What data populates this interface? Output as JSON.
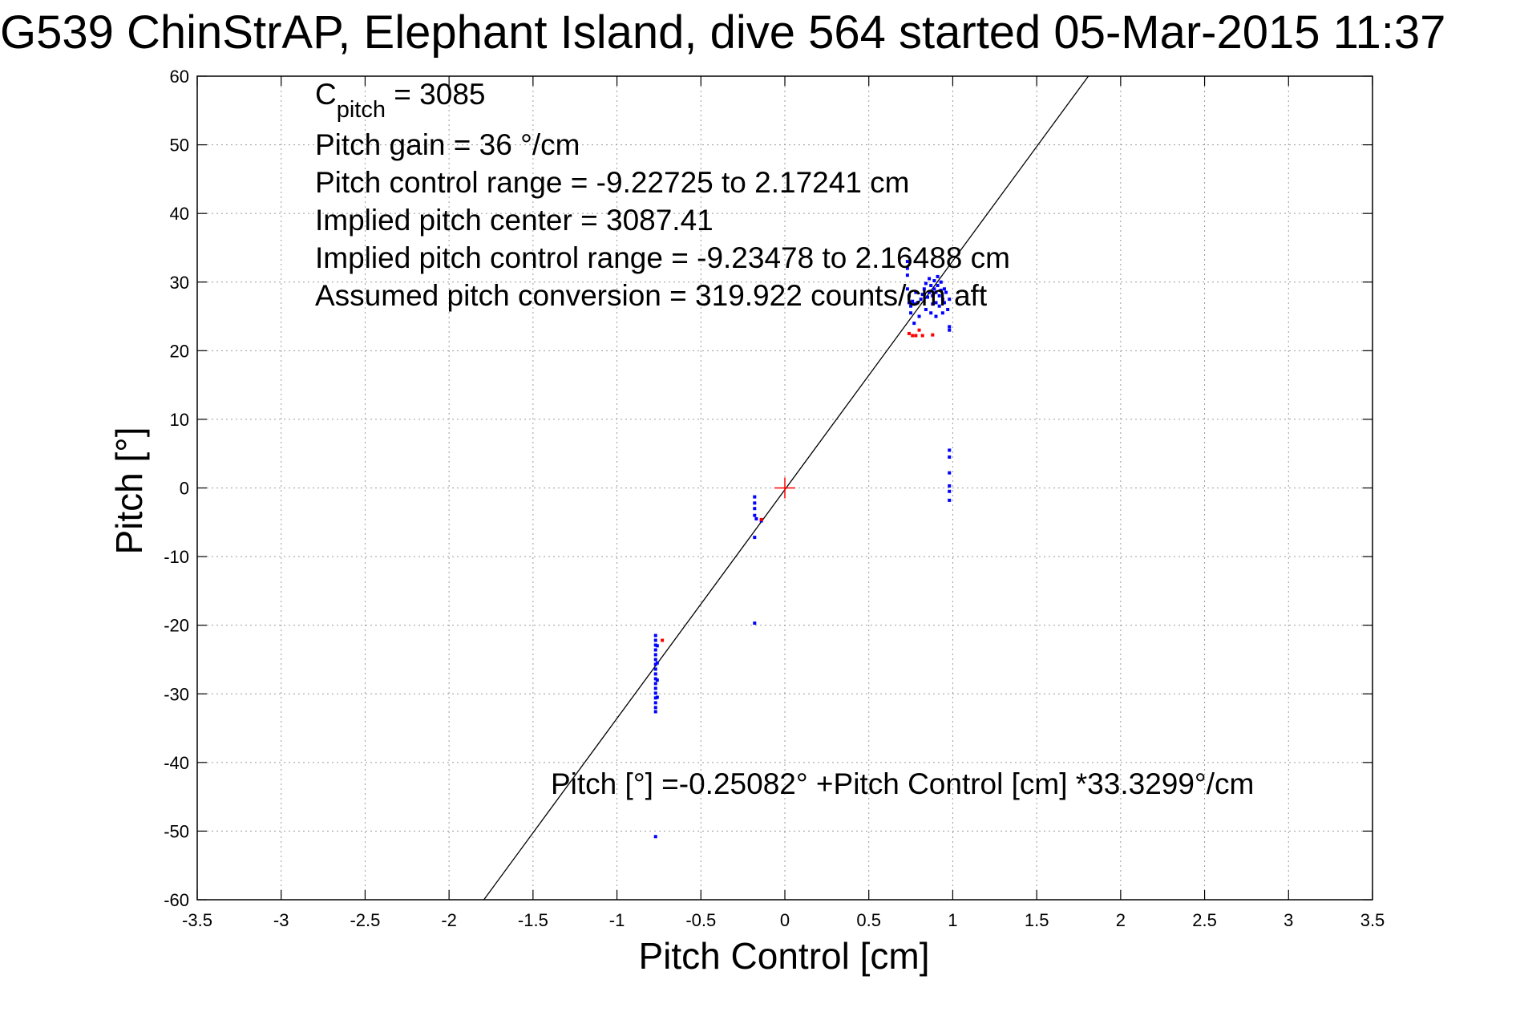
{
  "chart_data": {
    "type": "scatter",
    "title": "G539 ChinStrAP, Elephant Island, dive 564 started 05-Mar-2015 11:37",
    "xlabel": "Pitch Control [cm]",
    "ylabel": "Pitch [°]",
    "xlim": [
      -3.5,
      3.5
    ],
    "ylim": [
      -60,
      60
    ],
    "xticks": [
      -3.5,
      -3,
      -2.5,
      -2,
      -1.5,
      -1,
      -0.5,
      0,
      0.5,
      1,
      1.5,
      2,
      2.5,
      3,
      3.5
    ],
    "xtick_labels": [
      "-3.5",
      "-3",
      "-2.5",
      "-2",
      "-1.5",
      "-1",
      "-0.5",
      "0",
      "0.5",
      "1",
      "1.5",
      "2",
      "2.5",
      "3",
      "3.5"
    ],
    "yticks": [
      60,
      50,
      40,
      30,
      20,
      10,
      0,
      -10,
      -20,
      -30,
      -40,
      -50,
      -60
    ],
    "ytick_labels": [
      "60",
      "50",
      "40",
      "30",
      "20",
      "10",
      "0",
      "-10",
      "-20",
      "-30",
      "-40",
      "-50",
      "-60"
    ],
    "grid": true,
    "fit_line": {
      "intercept": -0.25082,
      "slope": 33.3299
    },
    "center_marker": {
      "x": 0,
      "y": 0,
      "color": "#ff0000"
    },
    "series": [
      {
        "color": "#0000ff",
        "points": [
          [
            -0.77,
            -21.5
          ],
          [
            -0.77,
            -22.2
          ],
          [
            -0.77,
            -22.9
          ],
          [
            -0.77,
            -23.6
          ],
          [
            -0.77,
            -24.3
          ],
          [
            -0.77,
            -25.0
          ],
          [
            -0.77,
            -25.7
          ],
          [
            -0.77,
            -26.4
          ],
          [
            -0.77,
            -27.1
          ],
          [
            -0.77,
            -27.8
          ],
          [
            -0.77,
            -28.5
          ],
          [
            -0.77,
            -29.2
          ],
          [
            -0.77,
            -29.9
          ],
          [
            -0.77,
            -30.6
          ],
          [
            -0.77,
            -31.3
          ],
          [
            -0.77,
            -32.0
          ],
          [
            -0.77,
            -32.6
          ],
          [
            -0.76,
            -23.0
          ],
          [
            -0.76,
            -25.5
          ],
          [
            -0.76,
            -28.0
          ],
          [
            -0.76,
            -30.5
          ],
          [
            -0.77,
            -50.8
          ],
          [
            -0.18,
            -1.3
          ],
          [
            -0.18,
            -2.2
          ],
          [
            -0.18,
            -3.0
          ],
          [
            -0.18,
            -4.0
          ],
          [
            -0.17,
            -4.5
          ],
          [
            -0.14,
            -4.8
          ],
          [
            -0.18,
            -7.2
          ],
          [
            -0.18,
            -19.7
          ],
          [
            0.73,
            33.0
          ],
          [
            0.73,
            32.0
          ],
          [
            0.73,
            31.0
          ],
          [
            0.73,
            29.0
          ],
          [
            0.74,
            28.0
          ],
          [
            0.74,
            27.0
          ],
          [
            0.75,
            26.5
          ],
          [
            0.75,
            25.5
          ],
          [
            0.76,
            27.2
          ],
          [
            0.77,
            26.8
          ],
          [
            0.77,
            24.0
          ],
          [
            0.78,
            28.5
          ],
          [
            0.79,
            27.0
          ],
          [
            0.8,
            25.0
          ],
          [
            0.81,
            27.5
          ],
          [
            0.82,
            28.2
          ],
          [
            0.83,
            29.0
          ],
          [
            0.84,
            29.8
          ],
          [
            0.84,
            26.0
          ],
          [
            0.85,
            27.8
          ],
          [
            0.86,
            28.5
          ],
          [
            0.86,
            30.5
          ],
          [
            0.87,
            29.5
          ],
          [
            0.87,
            25.5
          ],
          [
            0.88,
            28.0
          ],
          [
            0.88,
            26.8
          ],
          [
            0.89,
            30.2
          ],
          [
            0.89,
            29.0
          ],
          [
            0.9,
            28.5
          ],
          [
            0.9,
            27.0
          ],
          [
            0.9,
            25.0
          ],
          [
            0.91,
            30.8
          ],
          [
            0.91,
            29.5
          ],
          [
            0.92,
            28.0
          ],
          [
            0.92,
            26.5
          ],
          [
            0.93,
            30.0
          ],
          [
            0.93,
            28.8
          ],
          [
            0.94,
            27.5
          ],
          [
            0.94,
            25.5
          ],
          [
            0.95,
            29.0
          ],
          [
            0.95,
            27.0
          ],
          [
            0.96,
            28.5
          ],
          [
            0.97,
            26.0
          ],
          [
            0.98,
            27.5
          ],
          [
            0.98,
            23.5
          ],
          [
            0.98,
            23.0
          ],
          [
            0.98,
            5.5
          ],
          [
            0.98,
            4.5
          ],
          [
            0.98,
            2.2
          ],
          [
            0.98,
            0.3
          ],
          [
            0.98,
            -0.5
          ],
          [
            0.98,
            -1.8
          ]
        ]
      },
      {
        "color": "#ff0000",
        "points": [
          [
            0.74,
            22.5
          ],
          [
            0.76,
            22.2
          ],
          [
            0.78,
            22.2
          ],
          [
            0.82,
            22.2
          ],
          [
            0.88,
            22.3
          ],
          [
            0.8,
            23.0
          ],
          [
            -0.73,
            -22.2
          ],
          [
            -0.14,
            -4.6
          ]
        ]
      }
    ]
  },
  "annotations": {
    "c_pitch_main": "C",
    "c_pitch_sub": "pitch",
    "c_pitch_value": " = 3085",
    "pitch_gain": "Pitch gain = 36 °/cm",
    "pitch_control_range": "Pitch control range = -9.22725 to 2.17241 cm",
    "implied_pitch_center": "Implied pitch center = 3087.41",
    "implied_pitch_control_range": "Implied pitch control range = -9.23478 to 2.16488 cm",
    "assumed_pitch_conversion": "Assumed pitch conversion = 319.922 counts/cm aft",
    "fit_equation": "Pitch [°] =-0.25082° +Pitch Control [cm] *33.3299°/cm"
  }
}
